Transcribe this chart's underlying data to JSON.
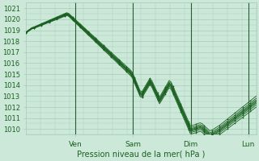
{
  "xlabel": "Pression niveau de la mer( hPa )",
  "bg_color": "#cce8d8",
  "grid_color": "#a8ccbc",
  "line_color": "#1a6020",
  "vline_color": "#2a6030",
  "ylim": [
    1009.5,
    1021.5
  ],
  "xlim": [
    0,
    1
  ],
  "yticks": [
    1010,
    1011,
    1012,
    1013,
    1014,
    1015,
    1016,
    1017,
    1018,
    1019,
    1020,
    1021
  ],
  "day_labels": [
    "Ven",
    "Sam",
    "Dim",
    "Lun"
  ],
  "day_positions": [
    0.215,
    0.465,
    0.715,
    0.965
  ],
  "n_steps": 120,
  "ensemble_offsets": [
    -0.5,
    -0.3,
    -0.15,
    -0.05,
    0.05,
    0.15,
    0.3,
    0.5
  ]
}
